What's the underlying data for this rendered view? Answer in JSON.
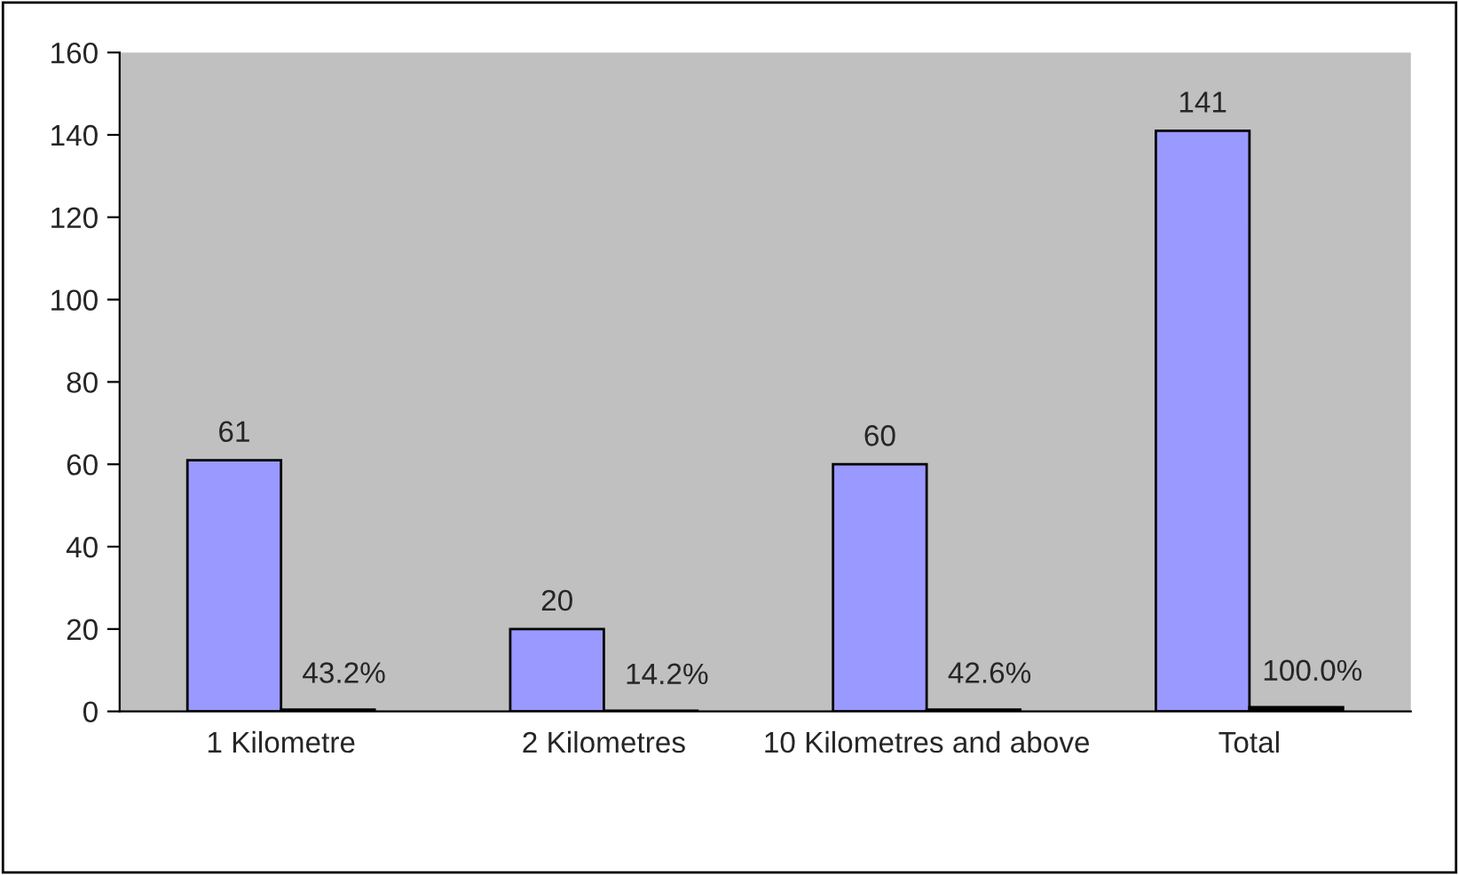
{
  "chart_data": {
    "type": "bar",
    "categories": [
      "1 Kilometre",
      "2 Kilometres",
      "10 Kilometres and above",
      "Total"
    ],
    "series": [
      {
        "color": "#9999ff",
        "values": [
          61,
          20,
          60,
          141
        ],
        "value_labels": [
          "61",
          "20",
          "60",
          "141"
        ]
      },
      {
        "color": "#000000",
        "values": [
          0.432,
          0.142,
          0.426,
          1.0
        ],
        "value_labels": [
          "43.2%",
          "14.2%",
          "42.6%",
          "100.0%"
        ]
      }
    ],
    "ylim": [
      0,
      160
    ],
    "yticks": [
      0,
      20,
      40,
      60,
      80,
      100,
      120,
      140,
      160
    ],
    "grid": false,
    "legend": false
  }
}
